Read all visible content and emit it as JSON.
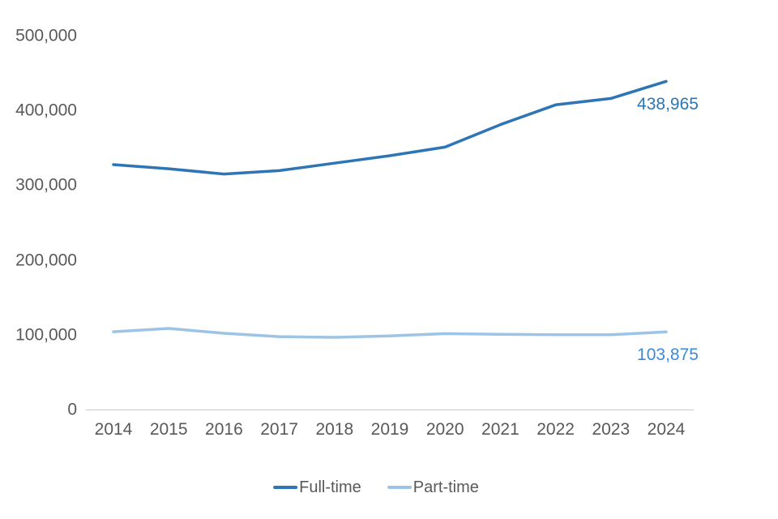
{
  "chart_data": {
    "type": "line",
    "title": "",
    "categories": [
      "2014",
      "2015",
      "2016",
      "2017",
      "2018",
      "2019",
      "2020",
      "2021",
      "2022",
      "2023",
      "2024"
    ],
    "series": [
      {
        "name": "Full-time",
        "color": "#2E75B6",
        "values": [
          327500,
          322000,
          315000,
          319500,
          329500,
          339500,
          351000,
          381000,
          407500,
          416000,
          438965
        ],
        "end_label": "438,965",
        "end_label_color": "#2E75B6"
      },
      {
        "name": "Part-time",
        "color": "#9DC3E6",
        "values": [
          104000,
          108500,
          102000,
          97500,
          96500,
          98500,
          101500,
          100500,
          100000,
          100000,
          103875
        ],
        "end_label": "103,875",
        "end_label_color": "#4189D8"
      }
    ],
    "y_axis": {
      "ticks": [
        0,
        100000,
        200000,
        300000,
        400000,
        500000
      ],
      "tick_labels": [
        "0",
        "100,000",
        "200,000",
        "300,000",
        "400,000",
        "500,000"
      ],
      "range": [
        0,
        500000
      ]
    },
    "x_axis": {
      "range": [
        "2014",
        "2024"
      ]
    },
    "grid": false,
    "legend_position": "bottom",
    "axis_line_color": "#C9C9C9",
    "tick_text_color": "#595959"
  }
}
